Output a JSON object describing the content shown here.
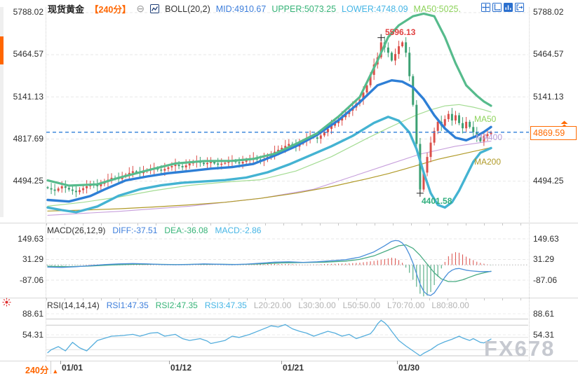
{
  "header": {
    "symbol": "现货黄金",
    "timeframe": "【240分】",
    "indicator": "BOLL(20,2)",
    "mid": "MID:4910.67",
    "upper": "UPPER:5073.25",
    "lower": "LOWER:4748.09",
    "ma50": "MA50:5025."
  },
  "toolbar": {
    "icons": [
      "pan-icon",
      "axis-scale-icon",
      "bar-chart-icon",
      "exit-icon"
    ]
  },
  "axes": {
    "price": [
      "5788.02",
      "5464.57",
      "5141.13",
      "4817.69",
      "4494.25"
    ],
    "macd": [
      "149.63",
      "31.29",
      "-87.06"
    ],
    "rsi": [
      "88.61",
      "54.31"
    ]
  },
  "price_tag": "4869.59",
  "annotations": {
    "high": "5596.13",
    "low": "4401.58",
    "ma50": "MA50",
    "ma400": "MA400",
    "ma200": "MA200"
  },
  "macd_header": {
    "title": "MACD(26,12,9)",
    "diff": "DIFF:-37.51",
    "dea": "DEA:-36.08",
    "macd": "MACD:-2.86"
  },
  "rsi_header": {
    "title": "RSI(14,14,14)",
    "rsi1": "RSI1:47.35",
    "rsi2": "RSI2:47.35",
    "rsi3": "RSI3:47.35",
    "levels": [
      "L20:20.00",
      "L30:30.00",
      "L50:50.00",
      "L70:70.00",
      "L80:80.00"
    ]
  },
  "xaxis": {
    "labels": [
      "01/01",
      "01/12",
      "01/21",
      "01/30"
    ],
    "timeframe": "240分"
  },
  "watermark": "FX678",
  "colors": {
    "accent_orange": "#ff6600",
    "candle_up": "#db4f4a",
    "candle_down": "#3ca173",
    "boll_upper": "#56bb8c",
    "boll_mid": "#2e7fd6",
    "boll_lower": "#44b3d2",
    "ma50_line": "#a4dc93",
    "ma200_line": "#b09a28",
    "ma400_line": "#c79fdc",
    "macd_diff": "#4a8fd9",
    "macd_dea": "#47ab82",
    "rsi_line": "#55aedd",
    "price_line": "#2f7fd8"
  },
  "chart_data": {
    "type": "candlestick+indicators",
    "symbol": "现货黄金",
    "interval_minutes": 240,
    "price_axis": [
      5788.02,
      5464.57,
      5141.13,
      4817.69,
      4494.25
    ],
    "last_price": 4869.59,
    "boll": {
      "mid": 4910.67,
      "upper": 5073.25,
      "lower": 4748.09,
      "ma50": 5025
    },
    "closes": [
      4440,
      4430,
      4420,
      4438,
      4455,
      4443,
      4430,
      4420,
      4410,
      4425,
      4440,
      4455,
      4470,
      4463,
      4455,
      4473,
      4490,
      4505,
      4520,
      4515,
      4510,
      4528,
      4545,
      4558,
      4570,
      4563,
      4555,
      4568,
      4580,
      4585,
      4590,
      4583,
      4575,
      4588,
      4600,
      4610,
      4620,
      4610,
      4600,
      4615,
      4630,
      4638,
      4645,
      4635,
      4625,
      4633,
      4640,
      4630,
      4620,
      4628,
      4635,
      4643,
      4650,
      4640,
      4630,
      4643,
      4655,
      4663,
      4670,
      4660,
      4650,
      4665,
      4680,
      4700,
      4720,
      4735,
      4750,
      4765,
      4780,
      4770,
      4760,
      4780,
      4800,
      4820,
      4840,
      4830,
      4820,
      4845,
      4870,
      4895,
      4920,
      4940,
      4960,
      4985,
      5010,
      5035,
      5060,
      5090,
      5120,
      5175,
      5230,
      5310,
      5390,
      5445,
      5560,
      5520,
      5480,
      5420,
      5470,
      5530,
      5560,
      5480,
      5300,
      5080,
      4780,
      4430,
      4560,
      4680,
      4790,
      4880,
      4950,
      4920,
      4970,
      5010,
      4960,
      5000,
      4940,
      4900,
      4950,
      4910,
      4870,
      4830,
      4800,
      4840,
      4855,
      4869.59
    ],
    "high_marker": {
      "index": 94,
      "value": 5596.13
    },
    "low_marker": {
      "index": 105,
      "value": 4401.58
    },
    "boll_upper": [
      [
        0,
        4500
      ],
      [
        6,
        4460
      ],
      [
        14,
        4470
      ],
      [
        20,
        4520
      ],
      [
        30,
        4590
      ],
      [
        36,
        4630
      ],
      [
        44,
        4648
      ],
      [
        52,
        4650
      ],
      [
        58,
        4665
      ],
      [
        64,
        4705
      ],
      [
        70,
        4780
      ],
      [
        76,
        4862
      ],
      [
        82,
        4990
      ],
      [
        88,
        5140
      ],
      [
        93,
        5420
      ],
      [
        96,
        5600
      ],
      [
        99,
        5690
      ],
      [
        103,
        5760
      ],
      [
        106,
        5780
      ],
      [
        109,
        5760
      ],
      [
        112,
        5600
      ],
      [
        115,
        5400
      ],
      [
        118,
        5230
      ],
      [
        121,
        5150
      ],
      [
        123,
        5105
      ],
      [
        125,
        5073
      ]
    ],
    "boll_mid": [
      [
        0,
        4350
      ],
      [
        6,
        4338
      ],
      [
        12,
        4380
      ],
      [
        16,
        4430
      ],
      [
        22,
        4500
      ],
      [
        28,
        4530
      ],
      [
        34,
        4555
      ],
      [
        40,
        4572
      ],
      [
        46,
        4590
      ],
      [
        52,
        4602
      ],
      [
        58,
        4626
      ],
      [
        64,
        4690
      ],
      [
        70,
        4762
      ],
      [
        76,
        4850
      ],
      [
        82,
        4962
      ],
      [
        88,
        5100
      ],
      [
        93,
        5230
      ],
      [
        97,
        5268
      ],
      [
        100,
        5258
      ],
      [
        103,
        5215
      ],
      [
        106,
        5125
      ],
      [
        109,
        5000
      ],
      [
        112,
        4898
      ],
      [
        115,
        4828
      ],
      [
        118,
        4808
      ],
      [
        121,
        4842
      ],
      [
        123,
        4872
      ],
      [
        125,
        4910
      ]
    ],
    "boll_lower": [
      [
        0,
        4292
      ],
      [
        4,
        4272
      ],
      [
        8,
        4256
      ],
      [
        14,
        4300
      ],
      [
        20,
        4382
      ],
      [
        26,
        4432
      ],
      [
        32,
        4462
      ],
      [
        38,
        4482
      ],
      [
        44,
        4492
      ],
      [
        50,
        4502
      ],
      [
        56,
        4522
      ],
      [
        62,
        4562
      ],
      [
        68,
        4622
      ],
      [
        74,
        4692
      ],
      [
        80,
        4762
      ],
      [
        86,
        4842
      ],
      [
        92,
        4942
      ],
      [
        96,
        4988
      ],
      [
        99,
        4958
      ],
      [
        102,
        4868
      ],
      [
        104,
        4742
      ],
      [
        106,
        4562
      ],
      [
        108,
        4402
      ],
      [
        110,
        4312
      ],
      [
        112,
        4292
      ],
      [
        114,
        4332
      ],
      [
        116,
        4422
      ],
      [
        118,
        4532
      ],
      [
        120,
        4642
      ],
      [
        122,
        4712
      ],
      [
        125,
        4748
      ]
    ],
    "ma50": [
      [
        0,
        4302
      ],
      [
        10,
        4332
      ],
      [
        20,
        4372
      ],
      [
        30,
        4422
      ],
      [
        40,
        4462
      ],
      [
        50,
        4487
      ],
      [
        60,
        4505
      ],
      [
        70,
        4572
      ],
      [
        80,
        4682
      ],
      [
        90,
        4822
      ],
      [
        96,
        4902
      ],
      [
        100,
        4952
      ],
      [
        104,
        5002
      ],
      [
        108,
        5042
      ],
      [
        112,
        5072
      ],
      [
        116,
        5082
      ],
      [
        120,
        5062
      ],
      [
        123,
        5042
      ],
      [
        125,
        5025
      ]
    ],
    "ma200": [
      [
        0,
        4265
      ],
      [
        10,
        4272
      ],
      [
        20,
        4282
      ],
      [
        30,
        4296
      ],
      [
        40,
        4312
      ],
      [
        50,
        4332
      ],
      [
        60,
        4362
      ],
      [
        70,
        4402
      ],
      [
        80,
        4452
      ],
      [
        90,
        4512
      ],
      [
        96,
        4552
      ],
      [
        100,
        4582
      ],
      [
        105,
        4622
      ],
      [
        110,
        4662
      ],
      [
        115,
        4692
      ],
      [
        120,
        4722
      ],
      [
        125,
        4752
      ]
    ],
    "ma400": [
      [
        0,
        4232
      ],
      [
        20,
        4262
      ],
      [
        40,
        4302
      ],
      [
        60,
        4362
      ],
      [
        75,
        4432
      ],
      [
        85,
        4522
      ],
      [
        95,
        4612
      ],
      [
        105,
        4702
      ],
      [
        115,
        4762
      ],
      [
        125,
        4802
      ]
    ],
    "macd": {
      "axis": [
        149.63,
        31.29,
        -87.06
      ],
      "current": {
        "diff": -37.51,
        "dea": -36.08,
        "macd": -2.86
      },
      "diff": [
        [
          0,
          -12
        ],
        [
          4,
          -14
        ],
        [
          8,
          -10
        ],
        [
          12,
          -4
        ],
        [
          16,
          2
        ],
        [
          20,
          6
        ],
        [
          24,
          8
        ],
        [
          28,
          6
        ],
        [
          32,
          3
        ],
        [
          36,
          1
        ],
        [
          40,
          3
        ],
        [
          44,
          6
        ],
        [
          48,
          4
        ],
        [
          52,
          2
        ],
        [
          56,
          5
        ],
        [
          60,
          10
        ],
        [
          64,
          16
        ],
        [
          68,
          18
        ],
        [
          72,
          15
        ],
        [
          76,
          18
        ],
        [
          80,
          24
        ],
        [
          84,
          30
        ],
        [
          88,
          45
        ],
        [
          92,
          75
        ],
        [
          95,
          110
        ],
        [
          97,
          135
        ],
        [
          98,
          140
        ],
        [
          99,
          138
        ],
        [
          100,
          125
        ],
        [
          101,
          100
        ],
        [
          102,
          60
        ],
        [
          103,
          10
        ],
        [
          104,
          -50
        ],
        [
          105,
          -110
        ],
        [
          106,
          -150
        ],
        [
          107,
          -170
        ],
        [
          108,
          -175
        ],
        [
          109,
          -160
        ],
        [
          110,
          -130
        ],
        [
          111,
          -100
        ],
        [
          112,
          -70
        ],
        [
          113,
          -45
        ],
        [
          114,
          -30
        ],
        [
          115,
          -22
        ],
        [
          116,
          -20
        ],
        [
          117,
          -25
        ],
        [
          118,
          -30
        ],
        [
          119,
          -33
        ],
        [
          120,
          -35
        ],
        [
          122,
          -38
        ],
        [
          125,
          -37.51
        ]
      ],
      "dea": [
        [
          0,
          -8
        ],
        [
          6,
          -10
        ],
        [
          12,
          -6
        ],
        [
          18,
          0
        ],
        [
          24,
          4
        ],
        [
          30,
          4
        ],
        [
          36,
          2
        ],
        [
          42,
          4
        ],
        [
          48,
          4
        ],
        [
          54,
          3
        ],
        [
          60,
          6
        ],
        [
          66,
          12
        ],
        [
          72,
          14
        ],
        [
          78,
          16
        ],
        [
          84,
          22
        ],
        [
          88,
          32
        ],
        [
          92,
          52
        ],
        [
          96,
          85
        ],
        [
          99,
          110
        ],
        [
          101,
          115
        ],
        [
          103,
          95
        ],
        [
          105,
          55
        ],
        [
          107,
          5
        ],
        [
          109,
          -45
        ],
        [
          111,
          -80
        ],
        [
          113,
          -95
        ],
        [
          115,
          -95
        ],
        [
          117,
          -85
        ],
        [
          119,
          -70
        ],
        [
          121,
          -55
        ],
        [
          123,
          -45
        ],
        [
          125,
          -36.08
        ]
      ]
    },
    "rsi": {
      "axis": [
        88.61,
        54.31
      ],
      "current": {
        "rsi1": 47.35,
        "rsi2": 47.35,
        "rsi3": 47.35
      },
      "levels": [
        20,
        30,
        50,
        70,
        80
      ],
      "line": [
        [
          0,
          25
        ],
        [
          1,
          30
        ],
        [
          3,
          35
        ],
        [
          5,
          28
        ],
        [
          7,
          42
        ],
        [
          9,
          33
        ],
        [
          11,
          28
        ],
        [
          14,
          45
        ],
        [
          18,
          52
        ],
        [
          21,
          53
        ],
        [
          24,
          55
        ],
        [
          26,
          52
        ],
        [
          29,
          57
        ],
        [
          31,
          58
        ],
        [
          33,
          52
        ],
        [
          36,
          55
        ],
        [
          38,
          48
        ],
        [
          40,
          45
        ],
        [
          43,
          48
        ],
        [
          45,
          44
        ],
        [
          46,
          40
        ],
        [
          50,
          45
        ],
        [
          52,
          52
        ],
        [
          54,
          50
        ],
        [
          57,
          55
        ],
        [
          60,
          62
        ],
        [
          63,
          69
        ],
        [
          65,
          67
        ],
        [
          67,
          71
        ],
        [
          69,
          64
        ],
        [
          71,
          60
        ],
        [
          73,
          57
        ],
        [
          75,
          52
        ],
        [
          77,
          56
        ],
        [
          79,
          60
        ],
        [
          81,
          57
        ],
        [
          83,
          52
        ],
        [
          85,
          55
        ],
        [
          87,
          48
        ],
        [
          89,
          52
        ],
        [
          91,
          56
        ],
        [
          92,
          63
        ],
        [
          93,
          72
        ],
        [
          94,
          78
        ],
        [
          95,
          74
        ],
        [
          96,
          68
        ],
        [
          97,
          60
        ],
        [
          99,
          45
        ],
        [
          101,
          36
        ],
        [
          103,
          28
        ],
        [
          105,
          20
        ],
        [
          106,
          24
        ],
        [
          108,
          30
        ],
        [
          110,
          38
        ],
        [
          112,
          43
        ],
        [
          114,
          47
        ],
        [
          116,
          52
        ],
        [
          117,
          49
        ],
        [
          119,
          45
        ],
        [
          120,
          48
        ],
        [
          122,
          42
        ],
        [
          123,
          41
        ],
        [
          124,
          44
        ],
        [
          125,
          47.35
        ]
      ]
    }
  }
}
